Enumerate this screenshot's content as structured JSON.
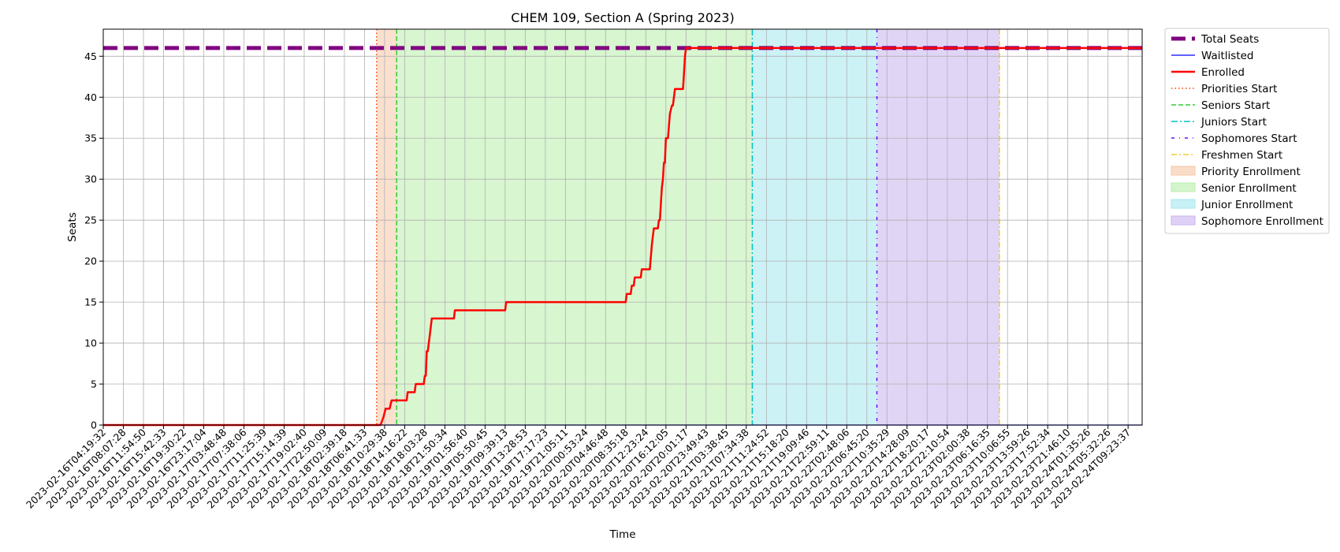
{
  "chart_data": {
    "type": "line",
    "title": "CHEM 109, Section A (Spring 2023)",
    "xlabel": "Time",
    "ylabel": "Seats",
    "ylim": [
      0,
      48.3
    ],
    "yticks": [
      0,
      5,
      10,
      15,
      20,
      25,
      30,
      35,
      40,
      45
    ],
    "grid": true,
    "legend_placement": "outside-right-top",
    "x_ticks": [
      "2023-02-16T04:19:32",
      "2023-02-16T08:07:28",
      "2023-02-16T11:54:50",
      "2023-02-16T15:42:33",
      "2023-02-16T19:30:22",
      "2023-02-16T23:17:04",
      "2023-02-17T03:48:48",
      "2023-02-17T07:38:06",
      "2023-02-17T11:25:39",
      "2023-02-17T15:14:39",
      "2023-02-17T19:02:40",
      "2023-02-17T22:50:09",
      "2023-02-18T02:39:18",
      "2023-02-18T06:41:33",
      "2023-02-18T10:29:38",
      "2023-02-18T14:16:22",
      "2023-02-18T18:03:28",
      "2023-02-18T21:50:34",
      "2023-02-19T01:56:40",
      "2023-02-19T05:50:45",
      "2023-02-19T09:39:13",
      "2023-02-19T13:28:53",
      "2023-02-19T17:17:23",
      "2023-02-19T21:05:11",
      "2023-02-20T00:53:24",
      "2023-02-20T04:46:48",
      "2023-02-20T08:35:18",
      "2023-02-20T12:23:24",
      "2023-02-20T16:12:05",
      "2023-02-20T20:01:17",
      "2023-02-20T23:49:43",
      "2023-02-21T03:38:45",
      "2023-02-21T07:34:38",
      "2023-02-21T11:24:52",
      "2023-02-21T15:18:20",
      "2023-02-21T19:09:46",
      "2023-02-21T22:59:11",
      "2023-02-22T02:48:06",
      "2023-02-22T06:45:20",
      "2023-02-22T10:35:29",
      "2023-02-22T14:28:09",
      "2023-02-22T18:20:17",
      "2023-02-22T22:10:54",
      "2023-02-23T02:00:38",
      "2023-02-23T06:16:35",
      "2023-02-23T10:06:55",
      "2023-02-23T13:59:26",
      "2023-02-23T17:52:34",
      "2023-02-23T21:46:10",
      "2023-02-24T01:35:26",
      "2023-02-24T05:32:26",
      "2023-02-24T09:23:37"
    ],
    "x_range": [
      0,
      51.7
    ],
    "series": [
      {
        "name": "Total Seats",
        "color": "#800080",
        "style": "dashed-thick",
        "points": [
          [
            0,
            46
          ],
          [
            51.7,
            46
          ]
        ]
      },
      {
        "name": "Waitlisted",
        "color": "#0000ff",
        "style": "solid-thin",
        "points": [
          [
            0,
            0
          ],
          [
            51.7,
            0
          ]
        ]
      },
      {
        "name": "Enrolled",
        "color": "#ff0000",
        "style": "solid-thick",
        "points": [
          [
            0,
            0
          ],
          [
            13.8,
            0
          ],
          [
            13.95,
            1
          ],
          [
            14.05,
            2
          ],
          [
            14.25,
            2
          ],
          [
            14.35,
            3
          ],
          [
            15.1,
            3
          ],
          [
            15.15,
            4
          ],
          [
            15.5,
            4
          ],
          [
            15.55,
            5
          ],
          [
            15.95,
            5
          ],
          [
            16.0,
            6
          ],
          [
            16.05,
            6
          ],
          [
            16.1,
            9
          ],
          [
            16.15,
            9
          ],
          [
            16.2,
            10
          ],
          [
            16.25,
            11
          ],
          [
            16.35,
            13
          ],
          [
            17.45,
            13
          ],
          [
            17.5,
            14
          ],
          [
            20.0,
            14
          ],
          [
            20.05,
            15
          ],
          [
            26.0,
            15
          ],
          [
            26.05,
            16
          ],
          [
            26.25,
            16
          ],
          [
            26.3,
            17
          ],
          [
            26.4,
            17
          ],
          [
            26.45,
            18
          ],
          [
            26.75,
            18
          ],
          [
            26.8,
            19
          ],
          [
            27.2,
            19
          ],
          [
            27.3,
            22
          ],
          [
            27.35,
            23
          ],
          [
            27.4,
            24
          ],
          [
            27.6,
            24
          ],
          [
            27.65,
            25
          ],
          [
            27.7,
            25
          ],
          [
            27.75,
            27
          ],
          [
            27.8,
            29
          ],
          [
            27.85,
            30
          ],
          [
            27.9,
            32
          ],
          [
            27.95,
            32
          ],
          [
            28.0,
            35
          ],
          [
            28.1,
            35
          ],
          [
            28.2,
            38
          ],
          [
            28.3,
            39
          ],
          [
            28.35,
            39
          ],
          [
            28.45,
            41
          ],
          [
            28.85,
            41
          ],
          [
            28.9,
            43
          ],
          [
            28.95,
            45
          ],
          [
            29.0,
            46
          ],
          [
            51.7,
            46
          ]
        ]
      }
    ],
    "phase_lines": [
      {
        "name": "Priorities Start",
        "x": 13.6,
        "color": "#ff4500",
        "style": "dotted"
      },
      {
        "name": "Seniors Start",
        "x": 14.6,
        "color": "#32cd32",
        "style": "dashed"
      },
      {
        "name": "Juniors Start",
        "x": 32.3,
        "color": "#00c0c0",
        "style": "dashdot"
      },
      {
        "name": "Sophomores Start",
        "x": 38.5,
        "color": "#6a0dff",
        "style": "loosedash"
      },
      {
        "name": "Freshmen Start",
        "x": 44.6,
        "color": "#e6c800",
        "style": "dashdot-thin"
      }
    ],
    "phase_regions": [
      {
        "name": "Priority Enrollment",
        "x0": 13.6,
        "x1": 14.6,
        "color": "#f5c6a5"
      },
      {
        "name": "Senior Enrollment",
        "x0": 14.6,
        "x1": 32.3,
        "color": "#b8eeaa"
      },
      {
        "name": "Junior Enrollment",
        "x0": 32.3,
        "x1": 38.5,
        "color": "#a3e8ee"
      },
      {
        "name": "Sophomore Enrollment",
        "x0": 38.5,
        "x1": 44.6,
        "color": "#c9b3ee"
      }
    ],
    "legend": [
      {
        "label": "Total Seats",
        "kind": "line",
        "color": "#800080",
        "style": "dashed-thick"
      },
      {
        "label": "Waitlisted",
        "kind": "line",
        "color": "#0000ff",
        "style": "solid-thin"
      },
      {
        "label": "Enrolled",
        "kind": "line",
        "color": "#ff0000",
        "style": "solid-thick"
      },
      {
        "label": "Priorities Start",
        "kind": "line",
        "color": "#ff4500",
        "style": "dotted"
      },
      {
        "label": "Seniors Start",
        "kind": "line",
        "color": "#32cd32",
        "style": "dashed"
      },
      {
        "label": "Juniors Start",
        "kind": "line",
        "color": "#00c0c0",
        "style": "dashdot"
      },
      {
        "label": "Sophomores Start",
        "kind": "line",
        "color": "#6a0dff",
        "style": "loosedash"
      },
      {
        "label": "Freshmen Start",
        "kind": "line",
        "color": "#e6c800",
        "style": "dashdot-thin"
      },
      {
        "label": "Priority Enrollment",
        "kind": "patch",
        "color": "#f5c6a5"
      },
      {
        "label": "Senior Enrollment",
        "kind": "patch",
        "color": "#b8eeaa"
      },
      {
        "label": "Junior Enrollment",
        "kind": "patch",
        "color": "#a3e8ee"
      },
      {
        "label": "Sophomore Enrollment",
        "kind": "patch",
        "color": "#c9b3ee"
      }
    ]
  }
}
